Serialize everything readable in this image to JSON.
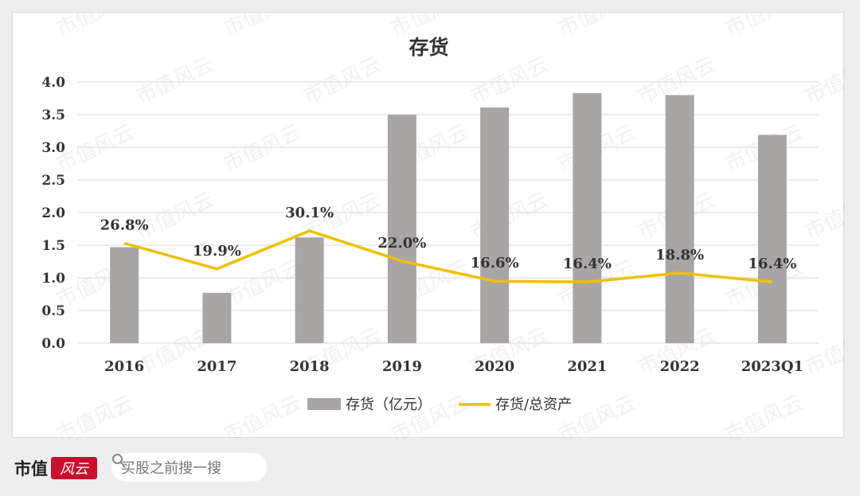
{
  "chart_data": {
    "type": "bar+line",
    "title": "存货",
    "categories": [
      "2016",
      "2017",
      "2018",
      "2019",
      "2020",
      "2021",
      "2022",
      "2023Q1"
    ],
    "series": [
      {
        "name": "存货（亿元）",
        "type": "bar",
        "values": [
          1.47,
          0.77,
          1.62,
          3.5,
          3.61,
          3.83,
          3.8,
          3.19
        ]
      },
      {
        "name": "存货/总资产",
        "type": "line",
        "values": [
          26.8,
          19.9,
          30.1,
          22.0,
          16.6,
          16.4,
          18.8,
          16.4
        ],
        "labels": [
          "26.8%",
          "19.9%",
          "30.1%",
          "22.0%",
          "16.6%",
          "16.4%",
          "18.8%",
          "16.4%"
        ]
      }
    ],
    "y_axis": {
      "min": 0,
      "max": 4.0,
      "step": 0.5,
      "ticks": [
        "0.0",
        "0.5",
        "1.0",
        "1.5",
        "2.0",
        "2.5",
        "3.0",
        "3.5",
        "4.0"
      ]
    },
    "line_axis": {
      "min": 0,
      "max": 70,
      "visible": false
    },
    "grid": true,
    "legend_position": "bottom",
    "colors": {
      "bar": "#aaa5a5",
      "line": "#f0c000",
      "grid": "#d9d9d9",
      "text": "#333333"
    }
  },
  "watermark": "市值风云",
  "footer": {
    "brand": "市值",
    "logo_text": "风云",
    "search_placeholder": "买股之前搜一搜",
    "icon": "search-icon"
  }
}
